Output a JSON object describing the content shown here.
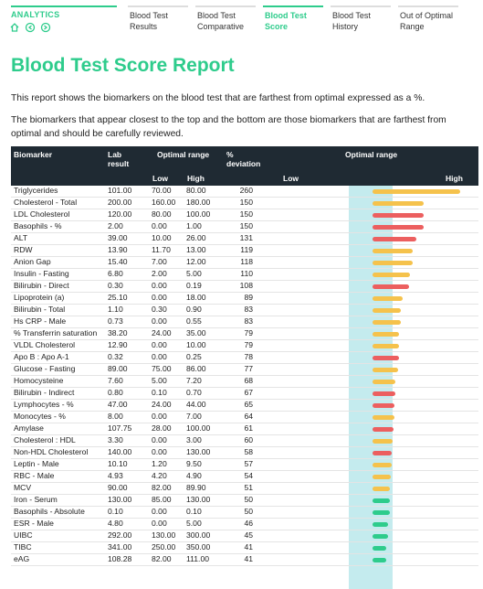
{
  "nav": {
    "brand": "ANALYTICS",
    "tabs": [
      {
        "label": "Blood Test Results",
        "active": false
      },
      {
        "label": "Blood Test Comparative",
        "active": false
      },
      {
        "label": "Blood Test Score",
        "active": true
      },
      {
        "label": "Blood Test History",
        "active": false
      },
      {
        "label": "Out of Optimal Range",
        "active": false
      }
    ]
  },
  "title": "Blood Test Score Report",
  "paragraphs": [
    "This report shows the biomarkers on the blood test that are farthest from optimal expressed as a %.",
    "The biomarkers that appear closest to the top and the bottom are those biomarkers that are farthest from optimal and should be carefully reviewed."
  ],
  "table": {
    "columns": {
      "biomarker": "Biomarker",
      "lab_result": "Lab result",
      "optimal_range": "Optimal range",
      "low": "Low",
      "high": "High",
      "deviation": "% deviation",
      "chart": "Optimal range",
      "chart_low": "Low",
      "chart_high": "High"
    },
    "rows": [
      {
        "biomarker": "Triglycerides",
        "lab_result": "101.00",
        "low": "70.00",
        "high": "80.00",
        "deviation": 260,
        "color": "#f5c24c"
      },
      {
        "biomarker": "Cholesterol - Total",
        "lab_result": "200.00",
        "low": "160.00",
        "high": "180.00",
        "deviation": 150,
        "color": "#f5c24c"
      },
      {
        "biomarker": "LDL Cholesterol",
        "lab_result": "120.00",
        "low": "80.00",
        "high": "100.00",
        "deviation": 150,
        "color": "#ec5f5f"
      },
      {
        "biomarker": "Basophils - %",
        "lab_result": "2.00",
        "low": "0.00",
        "high": "1.00",
        "deviation": 150,
        "color": "#ec5f5f"
      },
      {
        "biomarker": "ALT",
        "lab_result": "39.00",
        "low": "10.00",
        "high": "26.00",
        "deviation": 131,
        "color": "#ec5f5f"
      },
      {
        "biomarker": "RDW",
        "lab_result": "13.90",
        "low": "11.70",
        "high": "13.00",
        "deviation": 119,
        "color": "#f5c24c"
      },
      {
        "biomarker": "Anion Gap",
        "lab_result": "15.40",
        "low": "7.00",
        "high": "12.00",
        "deviation": 118,
        "color": "#f5c24c"
      },
      {
        "biomarker": "Insulin - Fasting",
        "lab_result": "6.80",
        "low": "2.00",
        "high": "5.00",
        "deviation": 110,
        "color": "#f5c24c"
      },
      {
        "biomarker": "Bilirubin - Direct",
        "lab_result": "0.30",
        "low": "0.00",
        "high": "0.19",
        "deviation": 108,
        "color": "#ec5f5f"
      },
      {
        "biomarker": "Lipoprotein (a)",
        "lab_result": "25.10",
        "low": "0.00",
        "high": "18.00",
        "deviation": 89,
        "color": "#f5c24c"
      },
      {
        "biomarker": "Bilirubin - Total",
        "lab_result": "1.10",
        "low": "0.30",
        "high": "0.90",
        "deviation": 83,
        "color": "#f5c24c"
      },
      {
        "biomarker": "Hs CRP - Male",
        "lab_result": "0.73",
        "low": "0.00",
        "high": "0.55",
        "deviation": 83,
        "color": "#f5c24c"
      },
      {
        "biomarker": "% Transferrin saturation",
        "lab_result": "38.20",
        "low": "24.00",
        "high": "35.00",
        "deviation": 79,
        "color": "#f5c24c"
      },
      {
        "biomarker": "VLDL Cholesterol",
        "lab_result": "12.90",
        "low": "0.00",
        "high": "10.00",
        "deviation": 79,
        "color": "#f5c24c"
      },
      {
        "biomarker": "Apo B : Apo A-1",
        "lab_result": "0.32",
        "low": "0.00",
        "high": "0.25",
        "deviation": 78,
        "color": "#ec5f5f"
      },
      {
        "biomarker": "Glucose - Fasting",
        "lab_result": "89.00",
        "low": "75.00",
        "high": "86.00",
        "deviation": 77,
        "color": "#f5c24c"
      },
      {
        "biomarker": "Homocysteine",
        "lab_result": "7.60",
        "low": "5.00",
        "high": "7.20",
        "deviation": 68,
        "color": "#f5c24c"
      },
      {
        "biomarker": "Bilirubin - Indirect",
        "lab_result": "0.80",
        "low": "0.10",
        "high": "0.70",
        "deviation": 67,
        "color": "#ec5f5f"
      },
      {
        "biomarker": "Lymphocytes - %",
        "lab_result": "47.00",
        "low": "24.00",
        "high": "44.00",
        "deviation": 65,
        "color": "#ec5f5f"
      },
      {
        "biomarker": "Monocytes - %",
        "lab_result": "8.00",
        "low": "0.00",
        "high": "7.00",
        "deviation": 64,
        "color": "#f5c24c"
      },
      {
        "biomarker": "Amylase",
        "lab_result": "107.75",
        "low": "28.00",
        "high": "100.00",
        "deviation": 61,
        "color": "#ec5f5f"
      },
      {
        "biomarker": "Cholesterol : HDL",
        "lab_result": "3.30",
        "low": "0.00",
        "high": "3.00",
        "deviation": 60,
        "color": "#f5c24c"
      },
      {
        "biomarker": "Non-HDL Cholesterol",
        "lab_result": "140.00",
        "low": "0.00",
        "high": "130.00",
        "deviation": 58,
        "color": "#ec5f5f"
      },
      {
        "biomarker": "Leptin - Male",
        "lab_result": "10.10",
        "low": "1.20",
        "high": "9.50",
        "deviation": 57,
        "color": "#f5c24c"
      },
      {
        "biomarker": "RBC - Male",
        "lab_result": "4.93",
        "low": "4.20",
        "high": "4.90",
        "deviation": 54,
        "color": "#f5c24c"
      },
      {
        "biomarker": "MCV",
        "lab_result": "90.00",
        "low": "82.00",
        "high": "89.90",
        "deviation": 51,
        "color": "#f5c24c"
      },
      {
        "biomarker": "Iron - Serum",
        "lab_result": "130.00",
        "low": "85.00",
        "high": "130.00",
        "deviation": 50,
        "color": "#2ecc8c"
      },
      {
        "biomarker": "Basophils - Absolute",
        "lab_result": "0.10",
        "low": "0.00",
        "high": "0.10",
        "deviation": 50,
        "color": "#2ecc8c"
      },
      {
        "biomarker": "ESR - Male",
        "lab_result": "4.80",
        "low": "0.00",
        "high": "5.00",
        "deviation": 46,
        "color": "#2ecc8c"
      },
      {
        "biomarker": "UIBC",
        "lab_result": "292.00",
        "low": "130.00",
        "high": "300.00",
        "deviation": 45,
        "color": "#2ecc8c"
      },
      {
        "biomarker": "TIBC",
        "lab_result": "341.00",
        "low": "250.00",
        "high": "350.00",
        "deviation": 41,
        "color": "#2ecc8c"
      },
      {
        "biomarker": "eAG",
        "lab_result": "108.28",
        "low": "82.00",
        "high": "111.00",
        "deviation": 41,
        "color": "#2ecc8c"
      }
    ]
  }
}
